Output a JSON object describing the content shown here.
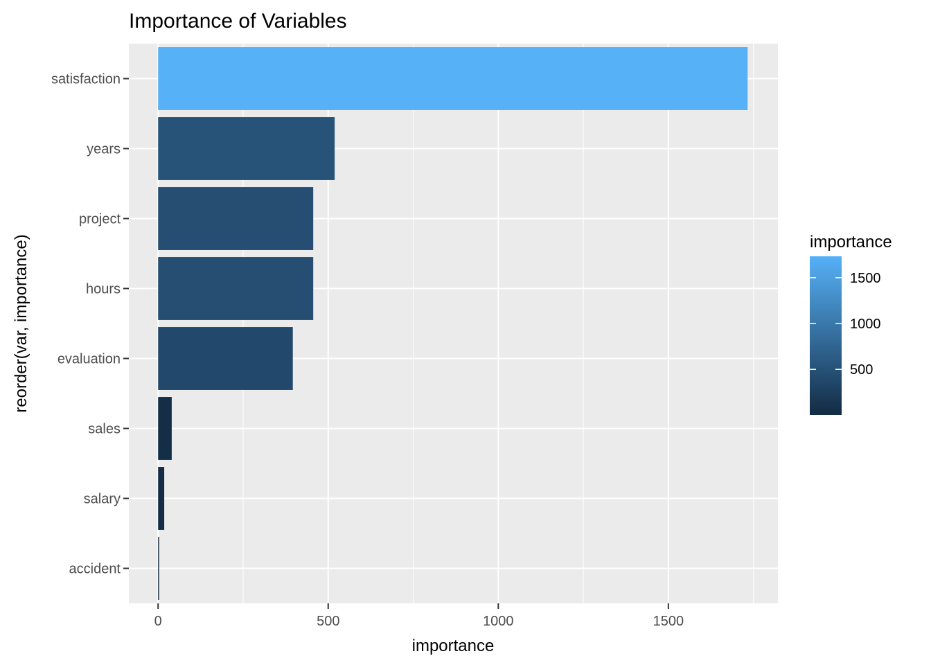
{
  "chart_data": {
    "type": "bar",
    "orientation": "horizontal",
    "title": "Importance of Variables",
    "xlabel": "importance",
    "ylabel": "reorder(var, importance)",
    "categories": [
      "satisfaction",
      "years",
      "project",
      "hours",
      "evaluation",
      "sales",
      "salary",
      "accident"
    ],
    "values": [
      1733,
      519,
      456,
      456,
      396,
      40,
      18,
      3
    ],
    "xlim": [
      -86,
      1822
    ],
    "xticks": [
      0,
      500,
      1000,
      1500
    ],
    "xtick_labels": [
      "0",
      "500",
      "1000",
      "1500"
    ],
    "grid": true,
    "legend": {
      "title": "importance",
      "placement": "right",
      "type": "colorbar",
      "range": [
        3,
        1733
      ],
      "ticks": [
        500,
        1000,
        1500
      ],
      "tick_labels": [
        "500",
        "1000",
        "1500"
      ],
      "low_color": "#132B43",
      "high_color": "#56B1F7"
    },
    "colors": {
      "panel_background": "#EBEBEB",
      "grid_line": "#FFFFFF",
      "low": "#132B43",
      "high": "#56B1F7"
    }
  }
}
